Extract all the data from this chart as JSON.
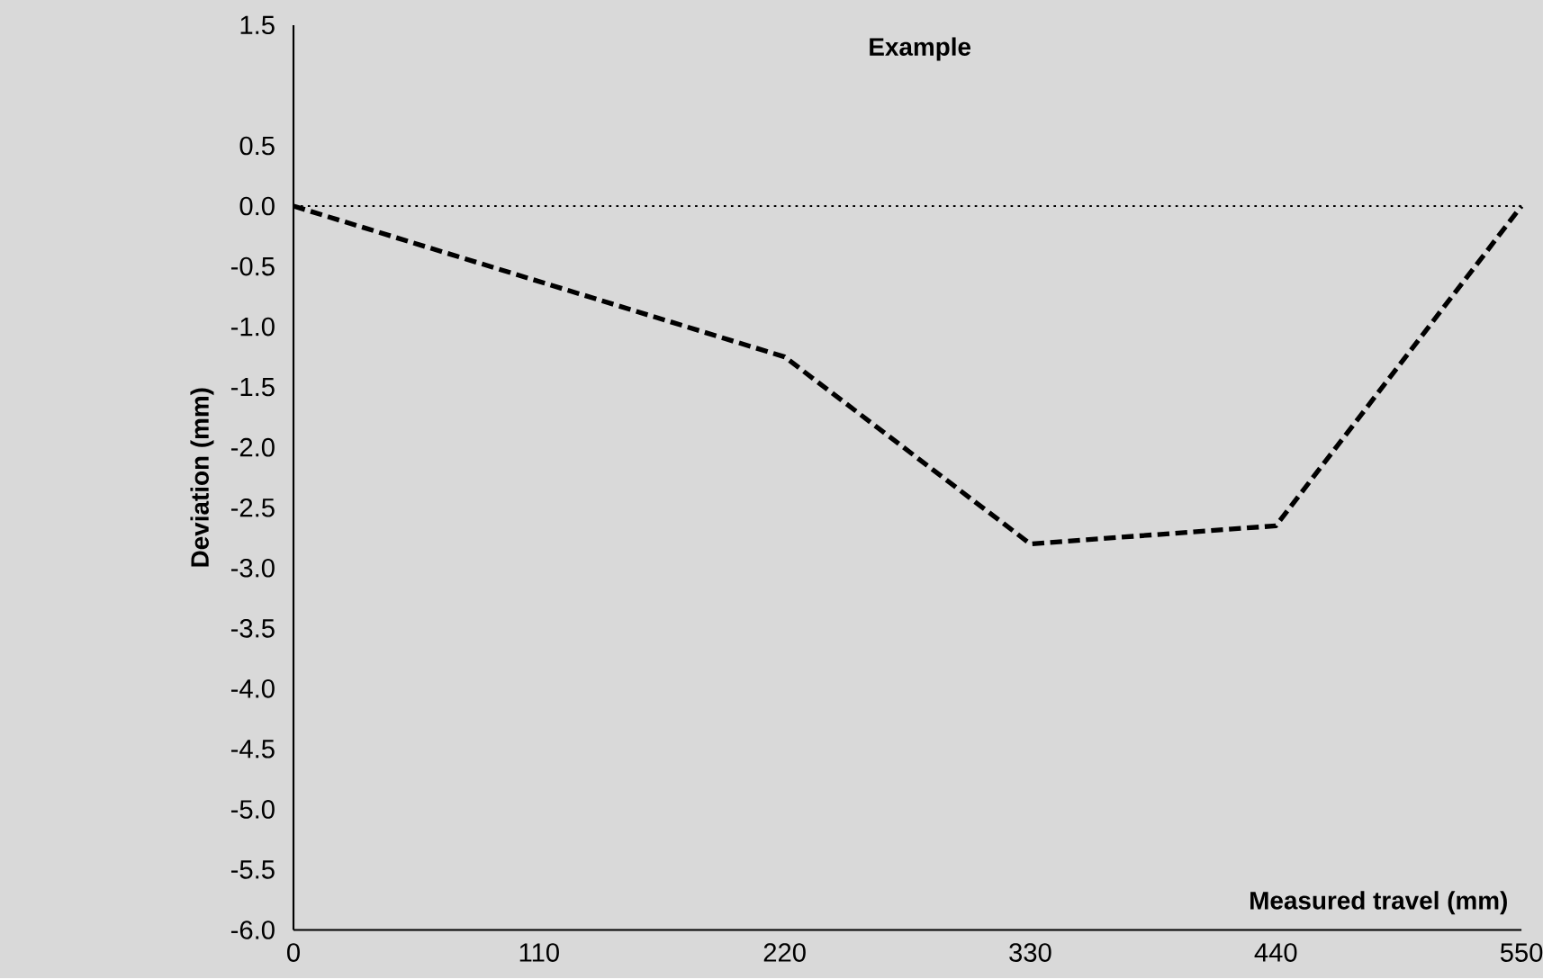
{
  "chart_data": {
    "type": "line",
    "title": "Example",
    "xlabel": "Measured travel (mm)",
    "ylabel": "Deviation (mm)",
    "x": [
      0,
      220,
      330,
      440,
      550
    ],
    "series": [
      {
        "color": "#000000",
        "values": [
          0,
          -1.25,
          -2.8,
          -2.65,
          0
        ]
      }
    ],
    "line_style": "dashed",
    "marker": "none",
    "grid": false,
    "legend": false,
    "xlim": [
      0,
      550
    ],
    "xticks": [
      0,
      110,
      220,
      330,
      440,
      550
    ],
    "ylim": [
      -6.0,
      1.5
    ],
    "yticks": [
      {
        "value": 1.5,
        "label": "1.5"
      },
      {
        "value": 0.5,
        "label": "0.5"
      },
      {
        "value": 0,
        "label": "0.0"
      },
      {
        "value": -0.5,
        "label": "-0.5"
      },
      {
        "value": -1.0,
        "label": "-1.0"
      },
      {
        "value": -1.5,
        "label": "-1.5"
      },
      {
        "value": -2.0,
        "label": "-2.0"
      },
      {
        "value": -2.5,
        "label": "-2.5"
      },
      {
        "value": -3.0,
        "label": "-3.0"
      },
      {
        "value": -3.5,
        "label": "-3.5"
      },
      {
        "value": -4.0,
        "label": "-4.0"
      },
      {
        "value": -4.5,
        "label": "-4.5"
      },
      {
        "value": -5.0,
        "label": "-5.0"
      },
      {
        "value": -5.5,
        "label": "-5.5"
      },
      {
        "value": -6.0,
        "label": "-6.0"
      }
    ],
    "ref_lines": [
      {
        "axis": "y",
        "value": 0,
        "line_style": "dotted",
        "color": "#000000"
      }
    ]
  }
}
